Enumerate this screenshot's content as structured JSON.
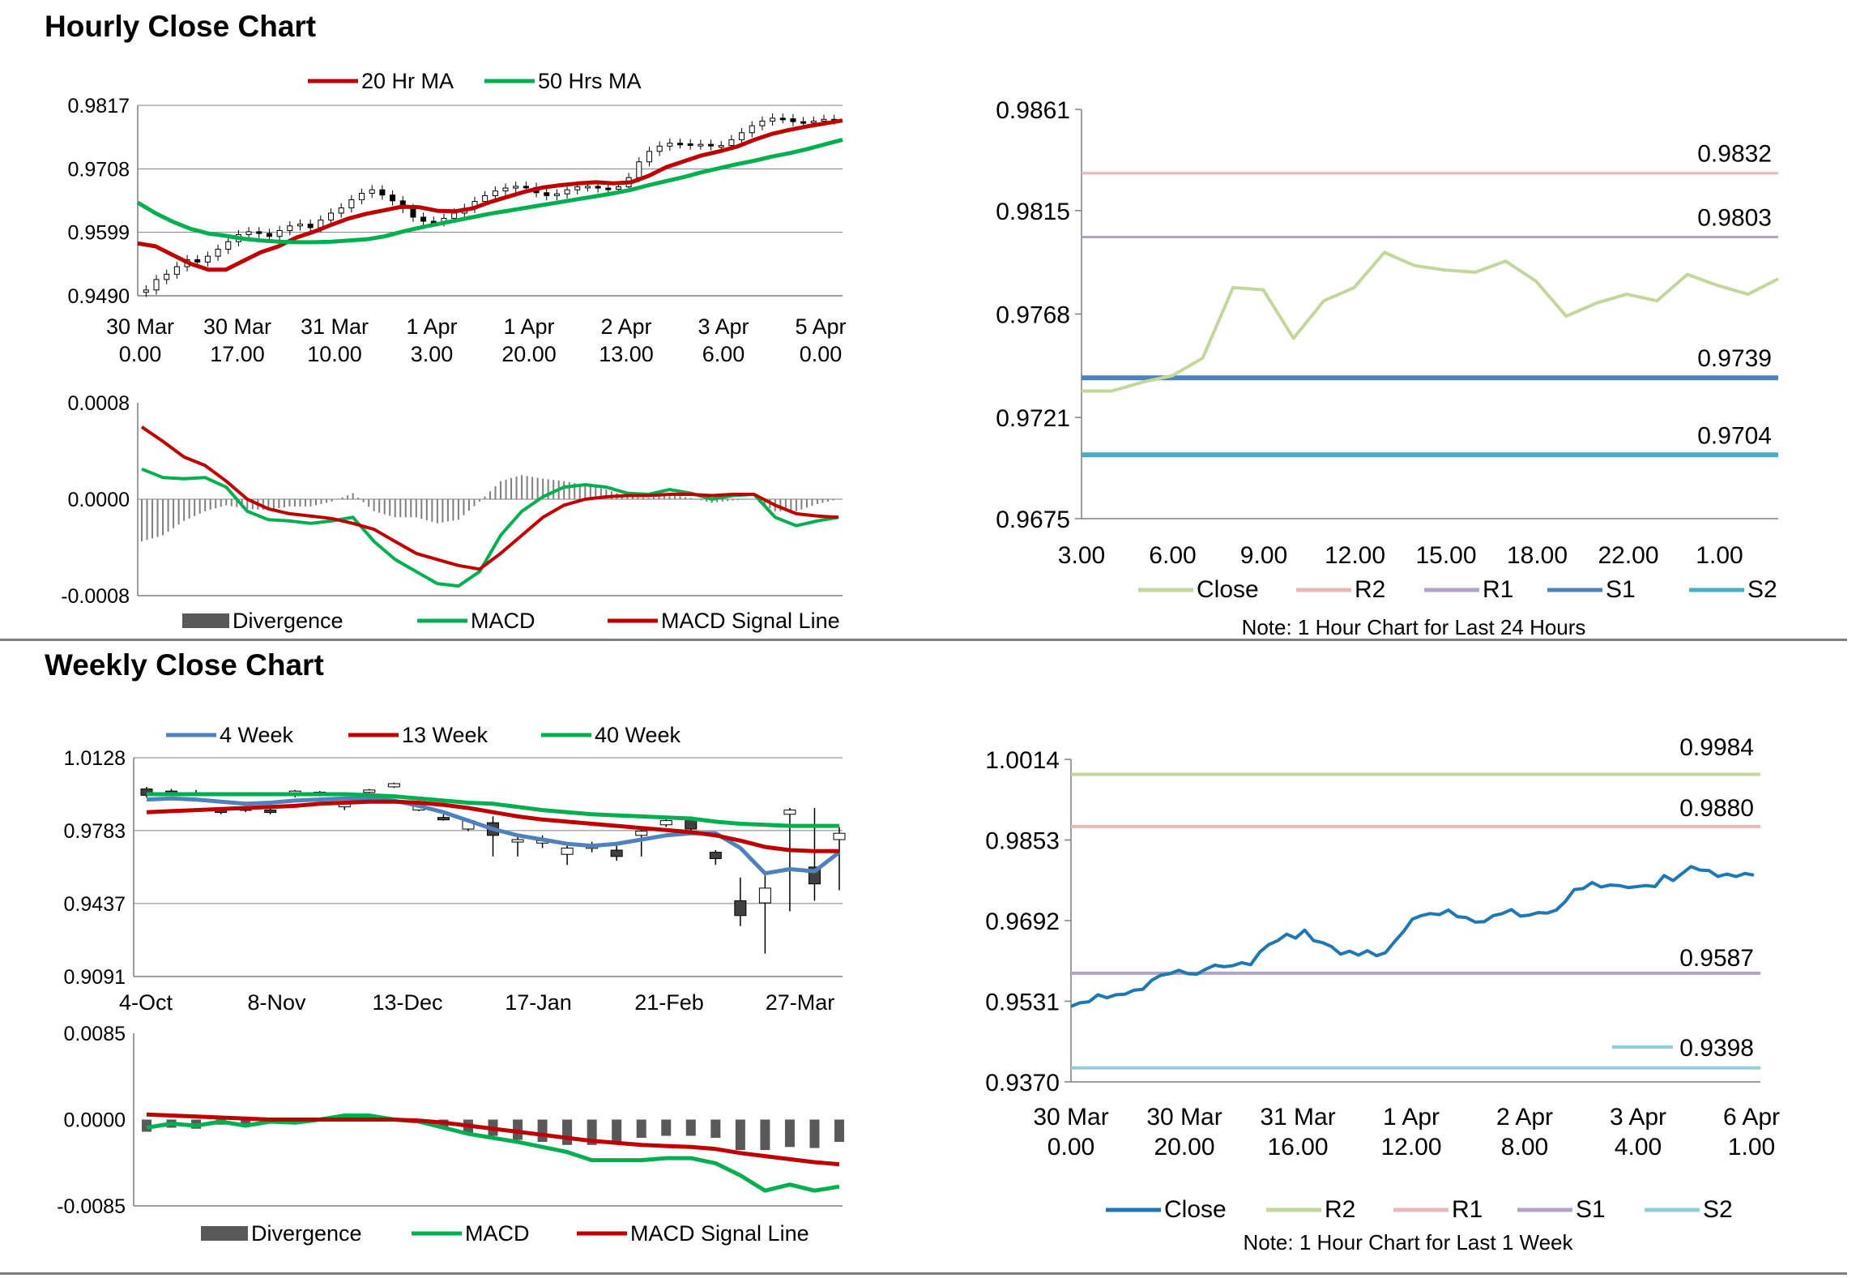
{
  "sections": {
    "hourly_title": "Hourly Close Chart",
    "weekly_title": "Weekly Close Chart"
  },
  "colors": {
    "red": "#c00000",
    "green": "#00b050",
    "steel_blue": "#4f81bd",
    "close_green_light": "#c3d69b",
    "r2_pink": "#e6b9b8",
    "r1_purple": "#b3a2c7",
    "s1_blue": "#4f81bd",
    "s2_teal": "#4bacc6",
    "close_blue": "#1f77b4",
    "gray_bar": "#595959"
  },
  "chart_data": [
    {
      "id": "hourly_price",
      "type": "line",
      "title": "",
      "legend": [
        "20 Hr MA",
        "50 Hrs MA"
      ],
      "legend_position": "top",
      "ylim": [
        0.949,
        0.9817
      ],
      "yticks": [
        "0.9817",
        "0.9708",
        "0.9599",
        "0.9490"
      ],
      "xticks": [
        [
          "30 Mar",
          "0.00"
        ],
        [
          "30 Mar",
          "17.00"
        ],
        [
          "31 Mar",
          "10.00"
        ],
        [
          "1 Apr",
          "3.00"
        ],
        [
          "1 Apr",
          "20.00"
        ],
        [
          "2 Apr",
          "13.00"
        ],
        [
          "3 Apr",
          "6.00"
        ],
        [
          "5 Apr",
          "0.00"
        ]
      ],
      "series": [
        {
          "name": "20 Hr MA",
          "values": [
            0.958,
            0.9575,
            0.956,
            0.9545,
            0.9535,
            0.9535,
            0.955,
            0.9565,
            0.9575,
            0.959,
            0.96,
            0.9612,
            0.9623,
            0.9631,
            0.9637,
            0.9643,
            0.9642,
            0.9636,
            0.9635,
            0.964,
            0.9651,
            0.966,
            0.9669,
            0.9676,
            0.968,
            0.9683,
            0.9685,
            0.9683,
            0.9685,
            0.9696,
            0.9711,
            0.9721,
            0.9731,
            0.9738,
            0.9746,
            0.9758,
            0.9768,
            0.9775,
            0.9781,
            0.9786,
            0.9791
          ]
        },
        {
          "name": "50 Hrs MA",
          "values": [
            0.965,
            0.9632,
            0.9617,
            0.9605,
            0.9597,
            0.9593,
            0.9588,
            0.9585,
            0.9583,
            0.9582,
            0.9582,
            0.9583,
            0.9585,
            0.9587,
            0.9592,
            0.96,
            0.9607,
            0.9613,
            0.9619,
            0.9625,
            0.9631,
            0.9636,
            0.9641,
            0.9646,
            0.9651,
            0.9656,
            0.9661,
            0.9666,
            0.9672,
            0.968,
            0.9687,
            0.9694,
            0.9702,
            0.9709,
            0.9716,
            0.9722,
            0.9729,
            0.9735,
            0.9742,
            0.975,
            0.9758
          ]
        }
      ],
      "closes": [
        0.95,
        0.9518,
        0.9527,
        0.954,
        0.9552,
        0.9548,
        0.9558,
        0.957,
        0.9583,
        0.9595,
        0.96,
        0.9597,
        0.9592,
        0.9602,
        0.961,
        0.9613,
        0.9607,
        0.962,
        0.9632,
        0.9641,
        0.9655,
        0.9666,
        0.9672,
        0.9663,
        0.9653,
        0.964,
        0.9625,
        0.9618,
        0.9617,
        0.9623,
        0.9632,
        0.964,
        0.9652,
        0.9662,
        0.967,
        0.9675,
        0.9678,
        0.9676,
        0.9667,
        0.9662,
        0.9665,
        0.9672,
        0.9677,
        0.9678,
        0.9675,
        0.9673,
        0.9677,
        0.9693,
        0.972,
        0.9738,
        0.9747,
        0.9752,
        0.9751,
        0.9749,
        0.975,
        0.9748,
        0.9748,
        0.9758,
        0.977,
        0.9782,
        0.979,
        0.9795,
        0.9794,
        0.9789,
        0.9787,
        0.979,
        0.9793,
        0.9792
      ]
    },
    {
      "id": "hourly_macd",
      "type": "bar+line",
      "legend": [
        "Divergence",
        "MACD",
        "MACD Signal Line"
      ],
      "legend_position": "bottom",
      "ylim": [
        -0.0008,
        0.0008
      ],
      "yticks": [
        "0.0008",
        "0.0000",
        "-0.0008"
      ],
      "series": [
        {
          "name": "MACD",
          "values": [
            0.00025,
            0.00018,
            0.00017,
            0.00018,
            0.0001,
            -0.0001,
            -0.00017,
            -0.00018,
            -0.0002,
            -0.00018,
            -0.00015,
            -0.00035,
            -0.0005,
            -0.0006,
            -0.0007,
            -0.00072,
            -0.0006,
            -0.0003,
            -0.0001,
            2e-05,
            0.0001,
            0.00012,
            0.0001,
            5e-05,
            4e-05,
            8e-05,
            5e-05,
            0.0,
            3e-05,
            4e-05,
            -0.00015,
            -0.00022,
            -0.00018,
            -0.00015
          ]
        },
        {
          "name": "MACD Signal Line",
          "values": [
            0.0006,
            0.00048,
            0.00035,
            0.00028,
            0.00015,
            0.0,
            -8e-05,
            -0.00012,
            -0.00014,
            -0.00016,
            -0.0002,
            -0.00025,
            -0.00035,
            -0.00045,
            -0.0005,
            -0.00055,
            -0.00058,
            -0.00045,
            -0.0003,
            -0.00015,
            -5e-05,
            0.0,
            2e-05,
            3e-05,
            3e-05,
            4e-05,
            4e-05,
            3e-05,
            4e-05,
            4e-05,
            -5e-05,
            -0.00012,
            -0.00014,
            -0.00015
          ]
        },
        {
          "name": "Divergence",
          "values": [
            -0.00035,
            -0.0003,
            -0.00018,
            -0.0001,
            -5e-05,
            -8e-05,
            -9e-05,
            -6e-05,
            -6e-05,
            -2e-05,
            5e-05,
            -0.0001,
            -0.00015,
            -0.00015,
            -0.0002,
            -0.00017,
            -2e-05,
            0.00015,
            0.0002,
            0.00017,
            0.00015,
            0.00012,
            8e-05,
            2e-05,
            1e-05,
            4e-05,
            1e-05,
            -3e-05,
            -1e-05,
            0.0,
            -0.0001,
            -0.0001,
            -4e-05,
            0.0
          ]
        }
      ]
    },
    {
      "id": "hourly_pivots",
      "type": "line",
      "legend": [
        "Close",
        "R2",
        "R1",
        "S1",
        "S2"
      ],
      "legend_position": "bottom",
      "note": "Note: 1 Hour Chart for Last 24 Hours",
      "ylim": [
        0.9675,
        0.9861
      ],
      "yticks": [
        "0.9861",
        "0.9815",
        "0.9768",
        "0.9721",
        "0.9675"
      ],
      "xticks": [
        "3.00",
        "6.00",
        "9.00",
        "12.00",
        "15.00",
        "18.00",
        "22.00",
        "1.00"
      ],
      "levels": [
        {
          "name": "R2",
          "value": 0.9832,
          "label": "0.9832"
        },
        {
          "name": "R1",
          "value": 0.9803,
          "label": "0.9803"
        },
        {
          "name": "S1",
          "value": 0.9739,
          "label": "0.9739"
        },
        {
          "name": "S2",
          "value": 0.9704,
          "label": "0.9704"
        }
      ],
      "series": [
        {
          "name": "Close",
          "values": [
            0.9733,
            0.9733,
            0.9737,
            0.974,
            0.9748,
            0.978,
            0.9779,
            0.9757,
            0.9774,
            0.978,
            0.9796,
            0.979,
            0.9788,
            0.9787,
            0.9792,
            0.9783,
            0.9767,
            0.9773,
            0.9777,
            0.9774,
            0.9786,
            0.9781,
            0.9777,
            0.9784
          ]
        }
      ]
    },
    {
      "id": "weekly_price",
      "type": "line",
      "legend": [
        "4 Week",
        "13 Week",
        "40 Week"
      ],
      "legend_position": "top",
      "ylim": [
        0.9091,
        1.0128
      ],
      "yticks": [
        "1.0128",
        "0.9783",
        "0.9437",
        "0.9091"
      ],
      "xticks": [
        "4-Oct",
        "8-Nov",
        "13-Dec",
        "17-Jan",
        "21-Feb",
        "27-Mar"
      ],
      "series": [
        {
          "name": "4 Week",
          "values": [
            0.993,
            0.9935,
            0.993,
            0.992,
            0.991,
            0.9915,
            0.9925,
            0.993,
            0.9935,
            0.9935,
            0.9925,
            0.99,
            0.987,
            0.983,
            0.979,
            0.976,
            0.974,
            0.972,
            0.971,
            0.972,
            0.974,
            0.976,
            0.977,
            0.977,
            0.97,
            0.958,
            0.96,
            0.959,
            0.968
          ]
        },
        {
          "name": "13 Week",
          "values": [
            0.987,
            0.9875,
            0.988,
            0.9885,
            0.989,
            0.9895,
            0.99,
            0.991,
            0.9915,
            0.992,
            0.992,
            0.9915,
            0.9905,
            0.989,
            0.987,
            0.985,
            0.9835,
            0.9825,
            0.9815,
            0.9805,
            0.9795,
            0.9785,
            0.9775,
            0.976,
            0.9735,
            0.9705,
            0.969,
            0.9685,
            0.9685
          ]
        },
        {
          "name": "40 Week",
          "values": [
            0.9955,
            0.9955,
            0.9955,
            0.9955,
            0.9955,
            0.9955,
            0.9955,
            0.9955,
            0.9955,
            0.995,
            0.9945,
            0.9935,
            0.9925,
            0.9915,
            0.991,
            0.9895,
            0.988,
            0.987,
            0.986,
            0.9855,
            0.985,
            0.9845,
            0.984,
            0.9825,
            0.9815,
            0.981,
            0.9805,
            0.9805,
            0.9805
          ]
        }
      ],
      "candles": [
        {
          "o": 0.998,
          "c": 0.995,
          "h": 0.999,
          "l": 0.994
        },
        {
          "o": 0.997,
          "c": 0.9955,
          "h": 0.998,
          "l": 0.995
        },
        {
          "o": 0.996,
          "c": 0.996,
          "h": 0.9975,
          "l": 0.995
        },
        {
          "o": 0.988,
          "c": 0.987,
          "h": 0.989,
          "l": 0.986
        },
        {
          "o": 0.989,
          "c": 0.9885,
          "h": 0.99,
          "l": 0.987
        },
        {
          "o": 0.988,
          "c": 0.9875,
          "h": 0.989,
          "l": 0.986
        },
        {
          "o": 0.995,
          "c": 0.997,
          "h": 0.9975,
          "l": 0.994
        },
        {
          "o": 0.995,
          "c": 0.9965,
          "h": 0.997,
          "l": 0.9945
        },
        {
          "o": 0.9895,
          "c": 0.991,
          "h": 0.9915,
          "l": 0.988
        },
        {
          "o": 0.9965,
          "c": 0.9975,
          "h": 0.998,
          "l": 0.996
        },
        {
          "o": 0.999,
          "c": 1.0005,
          "h": 1.001,
          "l": 0.9985
        },
        {
          "o": 0.988,
          "c": 0.992,
          "h": 0.9925,
          "l": 0.9875
        },
        {
          "o": 0.9845,
          "c": 0.984,
          "h": 0.986,
          "l": 0.983
        },
        {
          "o": 0.979,
          "c": 0.983,
          "h": 0.984,
          "l": 0.978
        },
        {
          "o": 0.982,
          "c": 0.976,
          "h": 0.985,
          "l": 0.966
        },
        {
          "o": 0.973,
          "c": 0.974,
          "h": 0.976,
          "l": 0.966
        },
        {
          "o": 0.973,
          "c": 0.9735,
          "h": 0.976,
          "l": 0.97
        },
        {
          "o": 0.967,
          "c": 0.97,
          "h": 0.972,
          "l": 0.962
        },
        {
          "o": 0.97,
          "c": 0.971,
          "h": 0.973,
          "l": 0.968
        },
        {
          "o": 0.969,
          "c": 0.966,
          "h": 0.972,
          "l": 0.964
        },
        {
          "o": 0.976,
          "c": 0.978,
          "h": 0.979,
          "l": 0.966
        },
        {
          "o": 0.981,
          "c": 0.983,
          "h": 0.984,
          "l": 0.98
        },
        {
          "o": 0.984,
          "c": 0.979,
          "h": 0.985,
          "l": 0.977
        },
        {
          "o": 0.968,
          "c": 0.965,
          "h": 0.969,
          "l": 0.962
        },
        {
          "o": 0.945,
          "c": 0.938,
          "h": 0.956,
          "l": 0.933
        },
        {
          "o": 0.944,
          "c": 0.951,
          "h": 0.957,
          "l": 0.92
        },
        {
          "o": 0.986,
          "c": 0.988,
          "h": 0.989,
          "l": 0.94
        },
        {
          "o": 0.961,
          "c": 0.953,
          "h": 0.989,
          "l": 0.945
        },
        {
          "o": 0.974,
          "c": 0.977,
          "h": 0.98,
          "l": 0.95
        }
      ]
    },
    {
      "id": "weekly_macd",
      "type": "bar+line",
      "legend": [
        "Divergence",
        "MACD",
        "MACD Signal Line"
      ],
      "legend_position": "bottom",
      "ylim": [
        -0.0085,
        0.0085
      ],
      "yticks": [
        "0.0085",
        "0.0000",
        "-0.0085"
      ],
      "series": [
        {
          "name": "MACD",
          "values": [
            -0.0008,
            -0.0004,
            -0.0006,
            -0.0002,
            -0.0006,
            -0.0002,
            -0.0003,
            0.0,
            0.0004,
            0.0004,
            0.0,
            -0.0002,
            -0.0008,
            -0.0014,
            -0.0018,
            -0.0022,
            -0.0027,
            -0.0032,
            -0.004,
            -0.004,
            -0.004,
            -0.0038,
            -0.0038,
            -0.0043,
            -0.0055,
            -0.007,
            -0.0064,
            -0.007,
            -0.0066
          ]
        },
        {
          "name": "MACD Signal Line",
          "values": [
            0.0005,
            0.0004,
            0.0003,
            0.0002,
            0.0001,
            0.0,
            0.0,
            0.0,
            0.0,
            0.0,
            0.0,
            -0.0001,
            -0.0003,
            -0.0006,
            -0.0009,
            -0.0012,
            -0.0015,
            -0.0018,
            -0.0021,
            -0.0023,
            -0.0025,
            -0.0026,
            -0.0027,
            -0.0029,
            -0.0033,
            -0.0036,
            -0.0039,
            -0.0042,
            -0.0044
          ]
        },
        {
          "name": "Divergence",
          "values": [
            -0.0012,
            -0.0008,
            -0.0009,
            -0.0005,
            -0.0007,
            -0.0002,
            -0.0003,
            0.0,
            0.0003,
            0.0003,
            0.0,
            -0.0001,
            -0.0009,
            -0.0013,
            -0.0016,
            -0.002,
            -0.0022,
            -0.0025,
            -0.0025,
            -0.0022,
            -0.0018,
            -0.0016,
            -0.0016,
            -0.0018,
            -0.003,
            -0.003,
            -0.0027,
            -0.0028,
            -0.0022
          ]
        }
      ]
    },
    {
      "id": "weekly_pivots",
      "type": "line",
      "legend": [
        "Close",
        "R2",
        "R1",
        "S1",
        "S2"
      ],
      "legend_position": "bottom",
      "note": "Note: 1 Hour Chart for Last 1 Week",
      "ylim": [
        0.937,
        1.0014
      ],
      "yticks": [
        "1.0014",
        "0.9853",
        "0.9692",
        "0.9531",
        "0.9370"
      ],
      "xticks": [
        [
          "30 Mar",
          "0.00"
        ],
        [
          "30 Mar",
          "20.00"
        ],
        [
          "31 Mar",
          "16.00"
        ],
        [
          "1 Apr",
          "12.00"
        ],
        [
          "2 Apr",
          "8.00"
        ],
        [
          "3 Apr",
          "4.00"
        ],
        [
          "6 Apr",
          "1.00"
        ]
      ],
      "levels": [
        {
          "name": "R2",
          "value": 0.9984,
          "label": "0.9984"
        },
        {
          "name": "R1",
          "value": 0.988,
          "label": "0.9880"
        },
        {
          "name": "S1",
          "value": 0.9587,
          "label": "0.9587"
        },
        {
          "name": "S2",
          "value": 0.9398,
          "label": "0.9398"
        }
      ],
      "series": [
        {
          "name": "Close",
          "values": [
            0.9521,
            0.9528,
            0.953,
            0.9544,
            0.9538,
            0.9544,
            0.9545,
            0.9553,
            0.9555,
            0.9573,
            0.9583,
            0.9586,
            0.9593,
            0.9586,
            0.9585,
            0.9595,
            0.9603,
            0.96,
            0.9602,
            0.9608,
            0.9604,
            0.9629,
            0.9644,
            0.9652,
            0.9665,
            0.9657,
            0.9673,
            0.9652,
            0.9648,
            0.964,
            0.9625,
            0.9631,
            0.9623,
            0.9632,
            0.9622,
            0.9628,
            0.965,
            0.967,
            0.9695,
            0.9702,
            0.9706,
            0.9704,
            0.9713,
            0.97,
            0.9698,
            0.9689,
            0.969,
            0.9702,
            0.9706,
            0.9714,
            0.9701,
            0.9703,
            0.9708,
            0.9707,
            0.9713,
            0.973,
            0.9754,
            0.9756,
            0.9768,
            0.9759,
            0.9763,
            0.9762,
            0.9758,
            0.976,
            0.9762,
            0.976,
            0.9782,
            0.9772,
            0.9786,
            0.98,
            0.9793,
            0.9792,
            0.978,
            0.9785,
            0.978,
            0.9786,
            0.9783
          ]
        }
      ]
    }
  ]
}
